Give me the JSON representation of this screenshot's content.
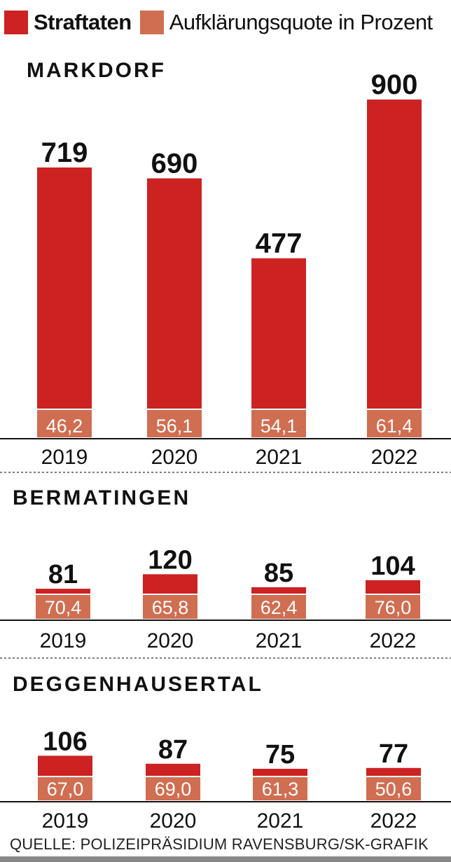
{
  "legend": {
    "straftaten": "Straftaten",
    "quote": "Aufklärungsquote in Prozent"
  },
  "colors": {
    "straftaten": "#cc2222",
    "quote": "#d06e52",
    "text": "#111111"
  },
  "chart_data": [
    {
      "type": "bar",
      "title": "MARKDORF",
      "categories": [
        "2019",
        "2020",
        "2021",
        "2022"
      ],
      "series": [
        {
          "name": "Straftaten",
          "values": [
            719,
            690,
            477,
            900
          ],
          "labels": [
            "719",
            "690",
            "477",
            "900"
          ]
        },
        {
          "name": "Aufklärungsquote in Prozent",
          "values": [
            46.2,
            56.1,
            54.1,
            61.4
          ],
          "labels": [
            "46,2",
            "56,1",
            "54,1",
            "61,4"
          ]
        }
      ]
    },
    {
      "type": "bar",
      "title": "BERMATINGEN",
      "categories": [
        "2019",
        "2020",
        "2021",
        "2022"
      ],
      "series": [
        {
          "name": "Straftaten",
          "values": [
            81,
            120,
            85,
            104
          ],
          "labels": [
            "81",
            "120",
            "85",
            "104"
          ]
        },
        {
          "name": "Aufklärungsquote in Prozent",
          "values": [
            70.4,
            65.8,
            62.4,
            76.0
          ],
          "labels": [
            "70,4",
            "65,8",
            "62,4",
            "76,0"
          ]
        }
      ]
    },
    {
      "type": "bar",
      "title": "DEGGENHAUSERTAL",
      "categories": [
        "2019",
        "2020",
        "2021",
        "2022"
      ],
      "series": [
        {
          "name": "Straftaten",
          "values": [
            106,
            87,
            75,
            77
          ],
          "labels": [
            "106",
            "87",
            "75",
            "77"
          ]
        },
        {
          "name": "Aufklärungsquote in Prozent",
          "values": [
            67.0,
            69.0,
            61.3,
            50.6
          ],
          "labels": [
            "67,0",
            "69,0",
            "61,3",
            "50,6"
          ]
        }
      ]
    }
  ],
  "source": "QUELLE: POLIZEIPRÄSIDIUM RAVENSBURG/SK-GRAFIK"
}
